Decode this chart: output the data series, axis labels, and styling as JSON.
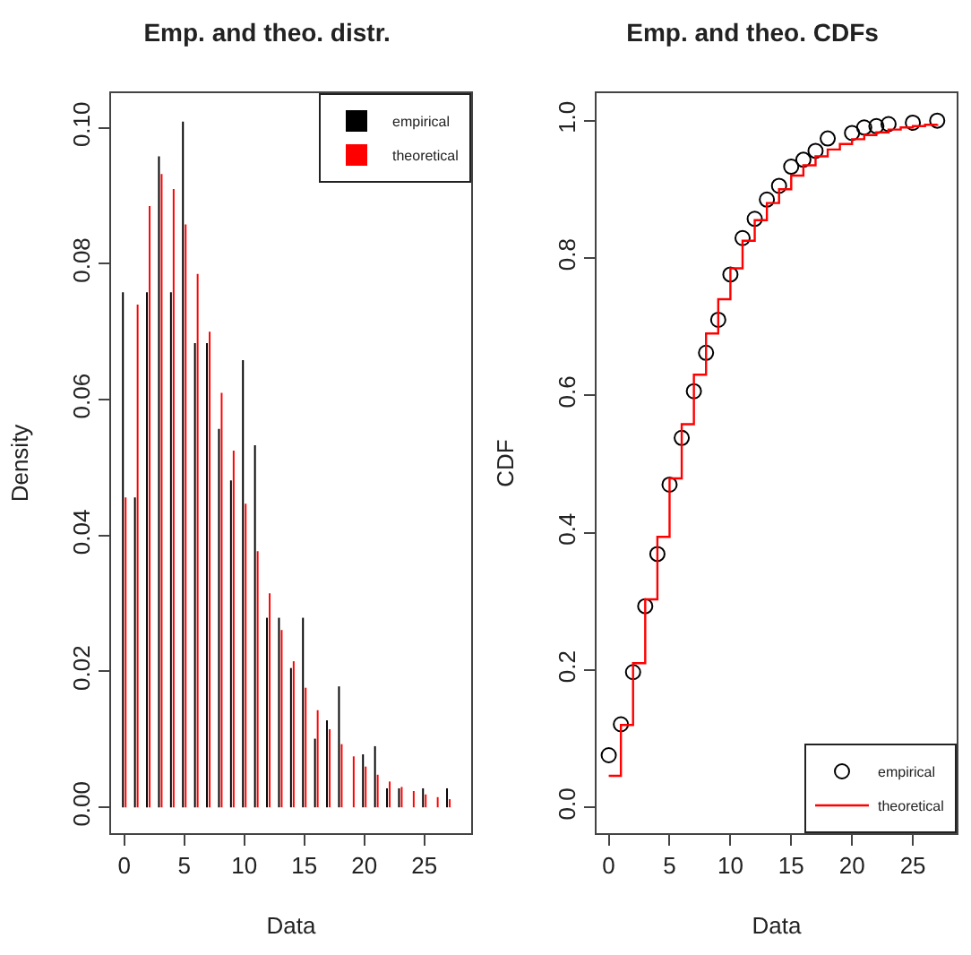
{
  "chart_data": [
    {
      "type": "bar",
      "title": "Emp. and theo. distr.",
      "xlabel": "Data",
      "ylabel": "Density",
      "x": [
        0,
        1,
        2,
        3,
        4,
        5,
        6,
        7,
        8,
        9,
        10,
        11,
        12,
        13,
        14,
        15,
        16,
        17,
        18,
        19,
        20,
        21,
        22,
        23,
        24,
        25,
        26,
        27
      ],
      "series": [
        {
          "name": "empirical",
          "color": "#000000",
          "values": [
            0.0758,
            0.0456,
            0.0758,
            0.0958,
            0.0758,
            0.1009,
            0.0683,
            0.0683,
            0.0557,
            0.0481,
            0.0658,
            0.0533,
            0.0279,
            0.0279,
            0.0205,
            0.0279,
            0.0101,
            0.0128,
            0.0178,
            null,
            0.0078,
            0.009,
            0.0028,
            0.0028,
            null,
            0.0028,
            null,
            0.0028
          ]
        },
        {
          "name": "theoretical",
          "color": "#ff0000",
          "values": [
            0.0456,
            0.074,
            0.0885,
            0.0932,
            0.091,
            0.0858,
            0.0785,
            0.07,
            0.061,
            0.0525,
            0.0447,
            0.0377,
            0.0315,
            0.0261,
            0.0215,
            0.0176,
            0.0143,
            0.0115,
            0.0093,
            0.0075,
            0.006,
            0.0048,
            0.0038,
            0.003,
            0.0024,
            0.0019,
            0.0015,
            0.0012
          ]
        }
      ],
      "xlim": [
        -1.1,
        28.9
      ],
      "xticks": [
        0,
        5,
        10,
        15,
        20,
        25
      ],
      "ylim": [
        -0.0038,
        0.1051
      ],
      "yticks": [
        {
          "value": 0,
          "label": "0.00"
        },
        {
          "value": 0.02,
          "label": "0.02"
        },
        {
          "value": 0.04,
          "label": "0.04"
        },
        {
          "value": 0.06,
          "label": "0.06"
        },
        {
          "value": 0.08,
          "label": "0.08"
        },
        {
          "value": 0.1,
          "label": "0.10"
        }
      ],
      "grid": false,
      "legend": "top right"
    },
    {
      "type": "step",
      "title": "Emp. and theo. CDFs",
      "xlabel": "Data",
      "ylabel": "CDF",
      "series": [
        {
          "name": "empirical",
          "type": "scatter",
          "marker": "circle",
          "color": "#000000",
          "x": [
            0,
            1,
            2,
            3,
            4,
            5,
            6,
            7,
            8,
            9,
            10,
            11,
            12,
            13,
            14,
            15,
            16,
            17,
            18,
            20,
            21,
            22,
            23,
            25,
            27
          ],
          "values": [
            0.076,
            0.121,
            0.197,
            0.293,
            0.369,
            0.47,
            0.538,
            0.606,
            0.662,
            0.71,
            0.776,
            0.829,
            0.857,
            0.885,
            0.905,
            0.933,
            0.943,
            0.956,
            0.974,
            0.982,
            0.99,
            0.992,
            0.995,
            0.997,
            1.0
          ]
        },
        {
          "name": "theoretical",
          "color": "#ff0000",
          "x": [
            0,
            1,
            2,
            3,
            4,
            5,
            6,
            7,
            8,
            9,
            10,
            11,
            12,
            13,
            14,
            15,
            16,
            17,
            18,
            19,
            20,
            21,
            22,
            23,
            24,
            25,
            26,
            27
          ],
          "values": [
            0.046,
            0.12,
            0.21,
            0.303,
            0.394,
            0.479,
            0.558,
            0.63,
            0.69,
            0.74,
            0.785,
            0.825,
            0.855,
            0.88,
            0.9,
            0.92,
            0.935,
            0.948,
            0.958,
            0.966,
            0.973,
            0.979,
            0.983,
            0.987,
            0.99,
            0.992,
            0.994,
            0.995
          ]
        }
      ],
      "xlim": [
        -1.0,
        28.6
      ],
      "xticks": [
        0,
        5,
        10,
        15,
        20,
        25
      ],
      "ylim": [
        -0.0375,
        1.04
      ],
      "yticks": [
        {
          "value": 0,
          "label": "0.0"
        },
        {
          "value": 0.2,
          "label": "0.2"
        },
        {
          "value": 0.4,
          "label": "0.4"
        },
        {
          "value": 0.6,
          "label": "0.6"
        },
        {
          "value": 0.8,
          "label": "0.8"
        },
        {
          "value": 1,
          "label": "1.0"
        }
      ],
      "grid": false,
      "legend": "bottom right"
    }
  ]
}
